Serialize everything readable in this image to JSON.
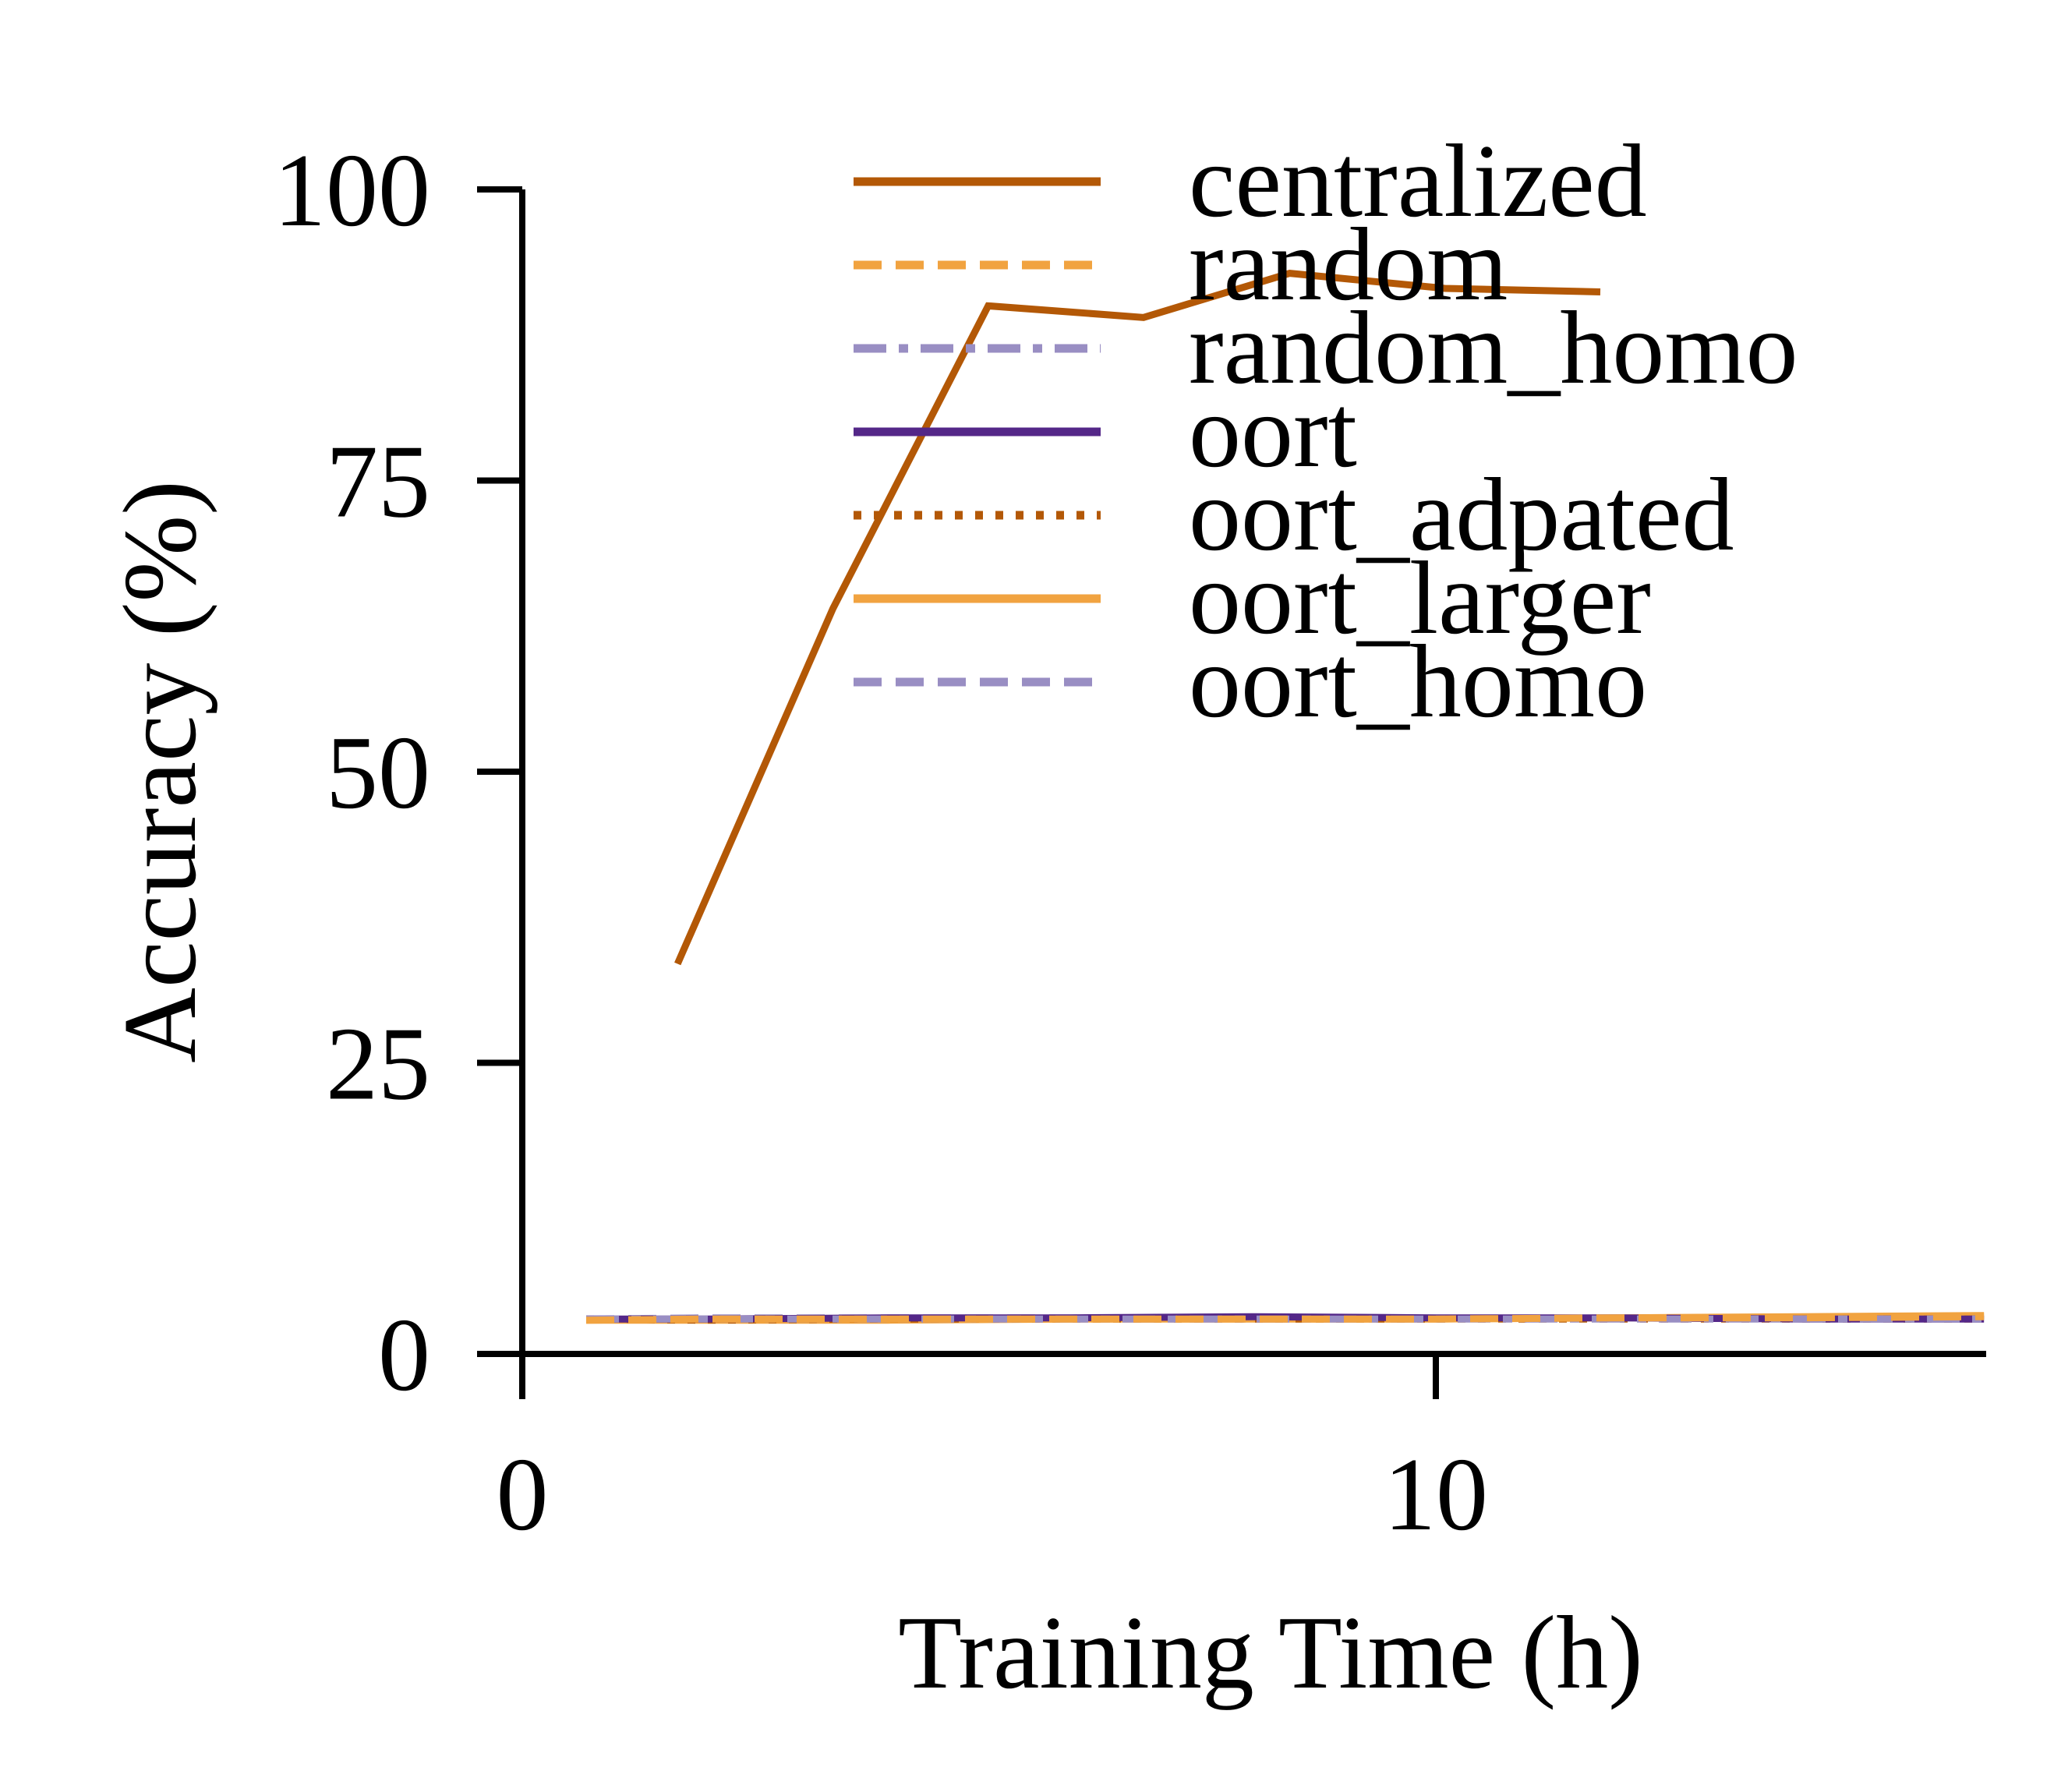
{
  "chart_data": {
    "type": "line",
    "title": "",
    "xlabel": "Training Time (h)",
    "ylabel": "Accuracy (%)",
    "xlim": [
      0,
      16
    ],
    "ylim": [
      0,
      100
    ],
    "xticks": [
      0,
      10
    ],
    "yticks": [
      0,
      25,
      50,
      75,
      100
    ],
    "grid": false,
    "legend": "top-right",
    "series": [
      {
        "name": "centralized",
        "color": "#b35806",
        "style": "solid",
        "x": [
          1.7,
          3.4,
          5.1,
          6.8,
          8.4,
          10.1,
          11.8
        ],
        "y": [
          33.5,
          64,
          90,
          89,
          92.8,
          91.5,
          91.2
        ]
      },
      {
        "name": "random",
        "color": "#f1a340",
        "style": "dashed",
        "x": [
          0.7,
          2,
          4,
          6,
          8,
          10,
          12,
          14,
          16
        ],
        "y": [
          2.9,
          3.0,
          3.0,
          3.0,
          3.0,
          3.0,
          3.1,
          3.1,
          3.2
        ]
      },
      {
        "name": "random_homo",
        "color": "#998ec3",
        "style": "dashdot",
        "x": [
          0.7,
          2,
          4,
          6,
          8,
          10,
          12,
          14,
          16
        ],
        "y": [
          3.0,
          3.0,
          3.0,
          3.0,
          3.0,
          3.0,
          3.0,
          3.0,
          3.0
        ]
      },
      {
        "name": "oort",
        "color": "#542788",
        "style": "solid",
        "x": [
          0.7,
          2,
          4,
          6,
          8,
          10,
          12,
          14,
          16
        ],
        "y": [
          3.0,
          3.0,
          3.1,
          3.1,
          3.2,
          3.1,
          3.1,
          3.0,
          3.0
        ]
      },
      {
        "name": "oort_adpated",
        "color": "#b35806",
        "style": "dotted",
        "x": [
          0.7,
          2,
          4,
          6,
          8,
          10,
          12,
          14,
          16
        ],
        "y": [
          3.0,
          2.9,
          3.0,
          3.0,
          3.0,
          3.0,
          3.0,
          3.0,
          3.0
        ]
      },
      {
        "name": "oort_larger",
        "color": "#f1a340",
        "style": "solid",
        "x": [
          0.7,
          2,
          4,
          6,
          8,
          10,
          12,
          14,
          16
        ],
        "y": [
          2.9,
          2.9,
          2.9,
          3.0,
          3.0,
          3.0,
          3.1,
          3.2,
          3.3
        ]
      },
      {
        "name": "oort_homo",
        "color": "#998ec3",
        "style": "dashed",
        "x": [
          0.7,
          2,
          4,
          6,
          6.5
        ],
        "y": [
          3.0,
          3.1,
          3.1,
          3.1,
          3.1
        ]
      }
    ]
  }
}
